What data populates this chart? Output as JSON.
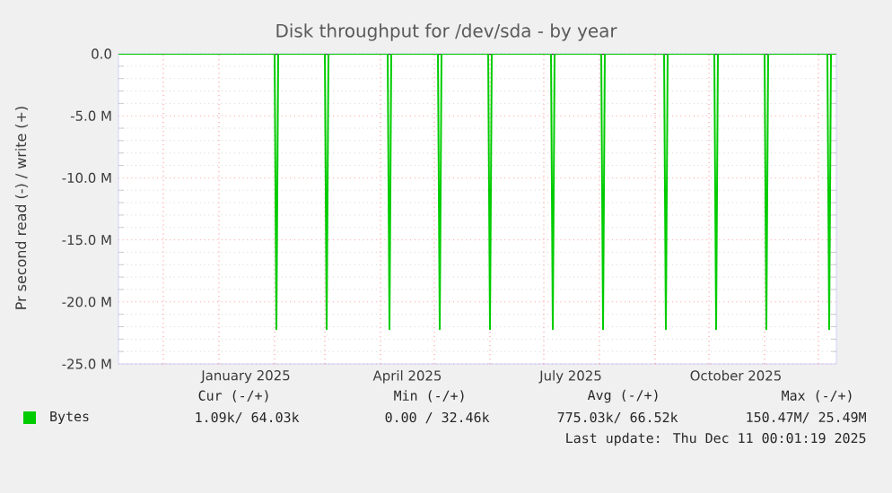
{
  "chart_data": {
    "type": "line",
    "title": "Disk throughput for /dev/sda - by year",
    "ylabel": "Pr second read (-) / write (+)",
    "x": [
      "2024-11-06",
      "2025-02-01",
      "2025-02-02",
      "2025-02-03",
      "2025-03-01",
      "2025-03-02",
      "2025-03-03",
      "2025-04-05",
      "2025-04-06",
      "2025-04-07",
      "2025-05-03",
      "2025-05-04",
      "2025-05-05",
      "2025-05-31",
      "2025-06-01",
      "2025-06-02",
      "2025-07-05",
      "2025-07-06",
      "2025-07-07",
      "2025-08-02",
      "2025-08-03",
      "2025-08-04",
      "2025-09-06",
      "2025-09-07",
      "2025-09-08",
      "2025-10-04",
      "2025-10-05",
      "2025-10-06",
      "2025-11-01",
      "2025-11-02",
      "2025-11-03",
      "2025-12-06",
      "2025-12-07",
      "2025-12-08",
      "2025-12-11"
    ],
    "series": [
      {
        "name": "Bytes",
        "color": "#00cc00",
        "values": [
          0,
          0,
          -22200000,
          0,
          0,
          -22200000,
          0,
          0,
          -22200000,
          0,
          0,
          -22200000,
          0,
          0,
          -22200000,
          0,
          0,
          -22200000,
          0,
          0,
          -22200000,
          0,
          0,
          -22200000,
          0,
          0,
          -22200000,
          0,
          0,
          -22200000,
          0,
          0,
          -22200000,
          0,
          0
        ]
      }
    ],
    "xlim": [
      "2024-11-06",
      "2025-12-11"
    ],
    "xticks": [
      {
        "value": "2024-12-01",
        "label": null
      },
      {
        "value": "2025-01-01",
        "label": null
      },
      {
        "value": "2025-01-16",
        "label": "January 2025"
      },
      {
        "value": "2025-02-01",
        "label": null
      },
      {
        "value": "2025-03-01",
        "label": null
      },
      {
        "value": "2025-04-01",
        "label": null
      },
      {
        "value": "2025-04-16",
        "label": "April 2025"
      },
      {
        "value": "2025-05-01",
        "label": null
      },
      {
        "value": "2025-06-01",
        "label": null
      },
      {
        "value": "2025-07-01",
        "label": null
      },
      {
        "value": "2025-07-16",
        "label": "July 2025"
      },
      {
        "value": "2025-08-01",
        "label": null
      },
      {
        "value": "2025-09-01",
        "label": null
      },
      {
        "value": "2025-10-01",
        "label": null
      },
      {
        "value": "2025-10-16",
        "label": "October 2025"
      },
      {
        "value": "2025-11-01",
        "label": null
      },
      {
        "value": "2025-12-01",
        "label": null
      }
    ],
    "ylim": [
      -25000000,
      0
    ],
    "yticks": [
      {
        "value": -25000000,
        "label": "-25.0 M"
      },
      {
        "value": -20000000,
        "label": "-20.0 M"
      },
      {
        "value": -15000000,
        "label": "-15.0 M"
      },
      {
        "value": -10000000,
        "label": "-10.0 M"
      },
      {
        "value": -5000000,
        "label": "-5.0 M"
      },
      {
        "value": 0,
        "label": "0.0"
      }
    ],
    "grid": true,
    "legend": "bottom left",
    "marker": "none",
    "line_style": "solid",
    "annotations": [
      "Cur (-/+)",
      "Min (-/+)",
      "Avg (-/+)",
      "Max (-/+)",
      "1.09k/ 64.03k",
      "0.00 / 32.46k",
      "775.03k/ 66.52k",
      "150.47M/ 25.49M",
      "Last update: Thu Dec 11 00:01:19 2025"
    ]
  }
}
